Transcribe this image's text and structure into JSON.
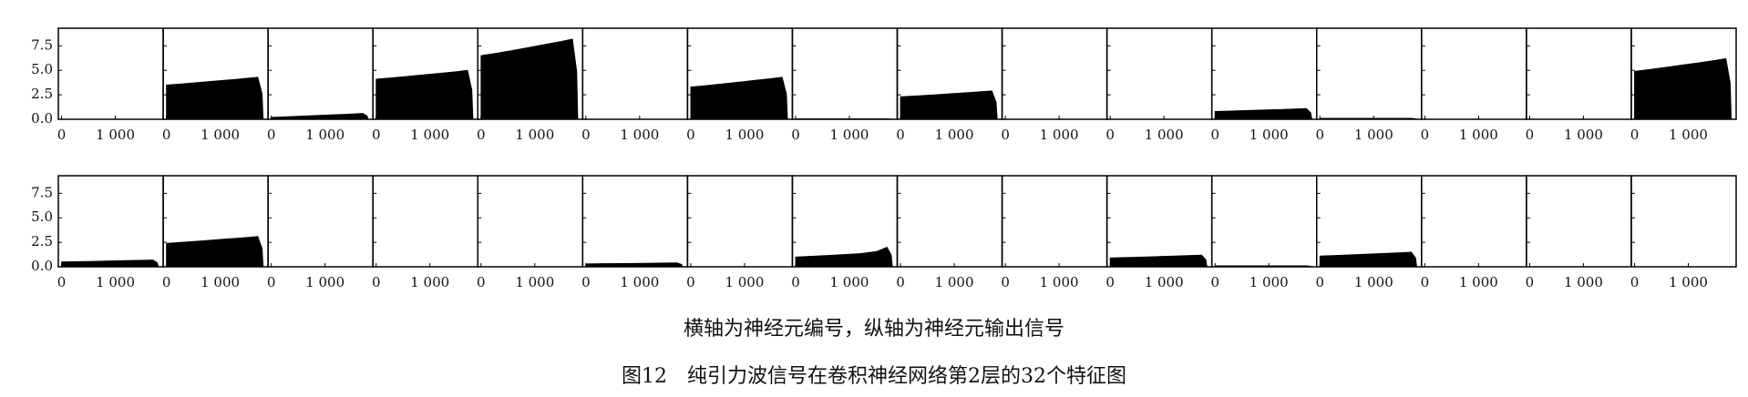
{
  "chart_data": {
    "type": "area",
    "color": "#000000",
    "note": "横轴为神经元编号，纵轴为神经元输出信号",
    "title": "图12　纯引力波信号在卷积神经网络第2层的32个特征图",
    "x": [
      0,
      300,
      600,
      900,
      1200,
      1500,
      1700,
      1780,
      1800
    ],
    "xlim": [
      -60,
      1890
    ],
    "ylim": [
      0,
      9.3
    ],
    "xticks": [
      0,
      {
        "value": 1000,
        "label": "1 000"
      }
    ],
    "yticks": [
      {
        "value": 0,
        "label": "0.0"
      },
      {
        "value": 2.5,
        "label": "2.5"
      },
      {
        "value": 5,
        "label": "5.0"
      },
      {
        "value": 7.5,
        "label": "7.5"
      }
    ],
    "series": [
      {
        "values": [
          0,
          0,
          0,
          0,
          0,
          0,
          0,
          0,
          0
        ]
      },
      {
        "values": [
          3.5,
          3.62,
          3.76,
          3.9,
          4.04,
          4.19,
          4.3,
          2.58,
          0
        ]
      },
      {
        "values": [
          0.2,
          0.26,
          0.33,
          0.4,
          0.47,
          0.54,
          0.6,
          0.36,
          0
        ]
      },
      {
        "values": [
          4.1,
          4.24,
          4.39,
          4.55,
          4.71,
          4.87,
          5.0,
          3.0,
          0
        ]
      },
      {
        "values": [
          6.5,
          6.76,
          7.04,
          7.35,
          7.66,
          7.96,
          8.2,
          4.92,
          0
        ]
      },
      {
        "values": [
          0,
          0,
          0,
          0,
          0,
          0,
          0,
          0,
          0
        ]
      },
      {
        "values": [
          3.3,
          3.45,
          3.62,
          3.8,
          3.98,
          4.16,
          4.3,
          2.58,
          0
        ]
      },
      {
        "values": [
          0.05,
          0.05,
          0.05,
          0.05,
          0.05,
          0.05,
          0.05,
          0.03,
          0
        ]
      },
      {
        "values": [
          2.3,
          2.39,
          2.49,
          2.6,
          2.71,
          2.82,
          2.9,
          1.74,
          0
        ]
      },
      {
        "values": [
          0,
          0,
          0,
          0,
          0,
          0,
          0,
          0,
          0
        ]
      },
      {
        "values": [
          0,
          0,
          0,
          0,
          0,
          0,
          0,
          0,
          0
        ]
      },
      {
        "values": [
          0.8,
          0.85,
          0.9,
          0.95,
          1.0,
          1.06,
          1.1,
          0.66,
          0
        ]
      },
      {
        "values": [
          0.1,
          0.1,
          0.1,
          0.1,
          0.1,
          0.1,
          0.1,
          0.06,
          0
        ]
      },
      {
        "values": [
          0,
          0,
          0,
          0,
          0,
          0,
          0,
          0,
          0
        ]
      },
      {
        "values": [
          0,
          0,
          0,
          0,
          0,
          0,
          0,
          0,
          0
        ]
      },
      {
        "values": [
          4.9,
          5.1,
          5.32,
          5.55,
          5.78,
          6.02,
          6.2,
          3.72,
          0
        ]
      },
      {
        "values": [
          0.5,
          0.53,
          0.56,
          0.6,
          0.64,
          0.67,
          0.7,
          0.42,
          0
        ]
      },
      {
        "values": [
          2.4,
          2.51,
          2.62,
          2.75,
          2.88,
          3.0,
          3.1,
          1.86,
          0
        ]
      },
      {
        "values": [
          0,
          0,
          0,
          0,
          0,
          0,
          0,
          0,
          0
        ]
      },
      {
        "values": [
          0,
          0,
          0,
          0,
          0,
          0,
          0,
          0,
          0
        ]
      },
      {
        "values": [
          0,
          0,
          0,
          0,
          0,
          0,
          0,
          0,
          0
        ]
      },
      {
        "values": [
          0.3,
          0.32,
          0.33,
          0.35,
          0.37,
          0.39,
          0.4,
          0.24,
          0
        ]
      },
      {
        "values": [
          0,
          0,
          0,
          0,
          0,
          0,
          0,
          0,
          0
        ]
      },
      {
        "values": [
          1.0,
          1.08,
          1.16,
          1.25,
          1.35,
          1.55,
          2.0,
          1.2,
          0
        ]
      },
      {
        "values": [
          0,
          0,
          0,
          0,
          0,
          0,
          0,
          0,
          0
        ]
      },
      {
        "values": [
          0,
          0,
          0,
          0,
          0,
          0,
          0,
          0,
          0
        ]
      },
      {
        "values": [
          0.9,
          0.95,
          1.0,
          1.05,
          1.1,
          1.16,
          1.2,
          0.72,
          0
        ]
      },
      {
        "values": [
          0.1,
          0.1,
          0.1,
          0.1,
          0.1,
          0.1,
          0.1,
          0.06,
          0
        ]
      },
      {
        "values": [
          1.1,
          1.16,
          1.23,
          1.3,
          1.37,
          1.44,
          1.5,
          0.9,
          0
        ]
      },
      {
        "values": [
          0,
          0,
          0,
          0,
          0,
          0,
          0,
          0,
          0
        ]
      },
      {
        "values": [
          0,
          0,
          0,
          0,
          0,
          0,
          0,
          0,
          0
        ]
      },
      {
        "values": [
          0,
          0,
          0,
          0,
          0,
          0,
          0,
          0,
          0
        ]
      }
    ]
  }
}
